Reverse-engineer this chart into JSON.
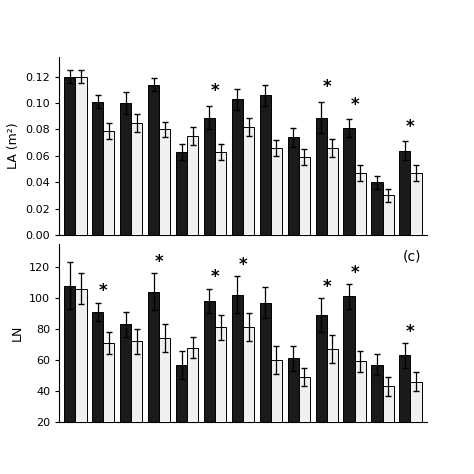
{
  "la_dark": [
    0.12,
    0.101,
    0.1,
    0.114,
    0.063,
    0.089,
    0.103,
    0.106,
    0.074,
    0.089,
    0.081,
    0.04,
    0.064
  ],
  "la_light": [
    0.12,
    0.079,
    0.085,
    0.08,
    0.075,
    0.063,
    0.082,
    0.066,
    0.059,
    0.066,
    0.047,
    0.03,
    0.047
  ],
  "la_dark_err": [
    0.005,
    0.005,
    0.008,
    0.005,
    0.006,
    0.009,
    0.008,
    0.008,
    0.007,
    0.012,
    0.007,
    0.005,
    0.007
  ],
  "la_light_err": [
    0.005,
    0.006,
    0.007,
    0.006,
    0.007,
    0.006,
    0.007,
    0.006,
    0.006,
    0.007,
    0.006,
    0.005,
    0.006
  ],
  "la_star": [
    false,
    false,
    false,
    false,
    false,
    true,
    false,
    false,
    false,
    true,
    true,
    false,
    true
  ],
  "ln_dark": [
    108,
    91,
    83,
    104,
    57,
    98,
    102,
    97,
    61,
    89,
    101,
    57,
    63
  ],
  "ln_light": [
    106,
    71,
    72,
    74,
    68,
    81,
    81,
    60,
    49,
    67,
    59,
    43,
    46
  ],
  "ln_dark_err": [
    15,
    6,
    8,
    12,
    9,
    8,
    12,
    10,
    8,
    11,
    8,
    7,
    8
  ],
  "ln_light_err": [
    10,
    7,
    8,
    9,
    7,
    8,
    9,
    9,
    6,
    9,
    7,
    6,
    6
  ],
  "ln_star": [
    false,
    true,
    false,
    true,
    false,
    true,
    true,
    false,
    false,
    true,
    true,
    false,
    true
  ],
  "dark_color": "#1a1a1a",
  "light_color": "#f0f0f0",
  "bar_width": 0.38,
  "ylabel_la": "LA (m²)",
  "ylabel_ln": "LN",
  "la_ylim": [
    0.0,
    0.135
  ],
  "la_yticks": [
    0.0,
    0.02,
    0.04,
    0.06,
    0.08,
    0.1,
    0.12
  ],
  "ln_ylim": [
    20,
    135
  ],
  "ln_yticks": [
    20,
    40,
    60,
    80,
    100,
    120
  ],
  "panel_label": "(c)",
  "n_groups": 13,
  "figsize": [
    4.74,
    4.74
  ],
  "dpi": 100
}
